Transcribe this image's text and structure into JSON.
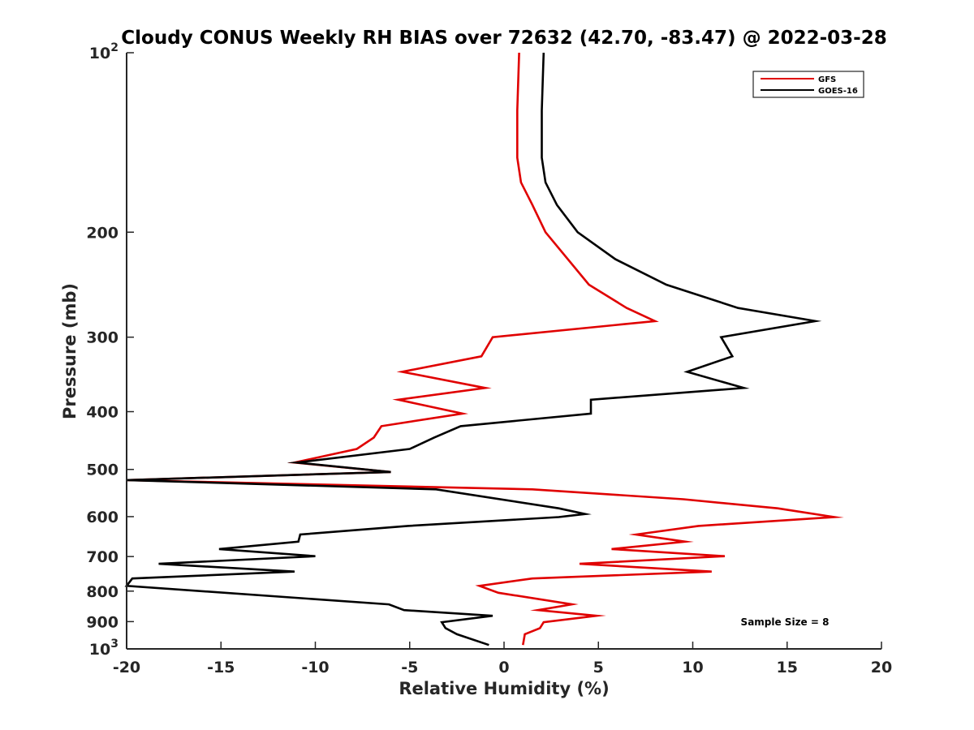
{
  "chart_data": {
    "type": "line",
    "title": "Cloudy CONUS Weekly RH BIAS over 72632 (42.70, -83.47) @ 2022-03-28",
    "xlabel": "Relative Humidity (%)",
    "ylabel": "Pressure (mb)",
    "xlim": [
      -20,
      20
    ],
    "ylim": [
      1000,
      100
    ],
    "yscale": "log",
    "y_reversed": true,
    "grid": false,
    "legend_position": "top-right",
    "annotation": "Sample Size = 8",
    "x_ticks": [
      {
        "value": -20,
        "label": "-20"
      },
      {
        "value": -15,
        "label": "-15"
      },
      {
        "value": -10,
        "label": "-10"
      },
      {
        "value": -5,
        "label": "-5"
      },
      {
        "value": 0,
        "label": "0"
      },
      {
        "value": 5,
        "label": "5"
      },
      {
        "value": 10,
        "label": "10"
      },
      {
        "value": 15,
        "label": "15"
      },
      {
        "value": 20,
        "label": "20"
      }
    ],
    "y_ticks": [
      {
        "value": 100,
        "label": "10",
        "sup": "2"
      },
      {
        "value": 200,
        "label": "200",
        "sup": ""
      },
      {
        "value": 300,
        "label": "300",
        "sup": ""
      },
      {
        "value": 400,
        "label": "400",
        "sup": ""
      },
      {
        "value": 500,
        "label": "500",
        "sup": ""
      },
      {
        "value": 600,
        "label": "600",
        "sup": ""
      },
      {
        "value": 700,
        "label": "700",
        "sup": ""
      },
      {
        "value": 800,
        "label": "800",
        "sup": ""
      },
      {
        "value": 900,
        "label": "900",
        "sup": ""
      },
      {
        "value": 1000,
        "label": "10",
        "sup": "3"
      }
    ],
    "series": [
      {
        "name": "GFS",
        "color": "#e00000",
        "points": [
          {
            "x": 0.8,
            "y": 100
          },
          {
            "x": 0.7,
            "y": 125
          },
          {
            "x": 0.7,
            "y": 150
          },
          {
            "x": 0.9,
            "y": 165
          },
          {
            "x": 1.5,
            "y": 180
          },
          {
            "x": 2.2,
            "y": 200
          },
          {
            "x": 4.5,
            "y": 245
          },
          {
            "x": 6.5,
            "y": 268
          },
          {
            "x": 8.0,
            "y": 282
          },
          {
            "x": -0.6,
            "y": 300
          },
          {
            "x": -1.2,
            "y": 323
          },
          {
            "x": -5.4,
            "y": 343
          },
          {
            "x": -1.0,
            "y": 365
          },
          {
            "x": -5.6,
            "y": 382
          },
          {
            "x": -2.2,
            "y": 403
          },
          {
            "x": -6.5,
            "y": 423
          },
          {
            "x": -6.9,
            "y": 442
          },
          {
            "x": -7.8,
            "y": 462
          },
          {
            "x": -11.1,
            "y": 487
          },
          {
            "x": -6.0,
            "y": 505
          },
          {
            "x": -20.0,
            "y": 521
          },
          {
            "x": 1.5,
            "y": 540
          },
          {
            "x": 9.5,
            "y": 561
          },
          {
            "x": 14.5,
            "y": 581
          },
          {
            "x": 17.5,
            "y": 601
          },
          {
            "x": 10.3,
            "y": 622
          },
          {
            "x": 7.0,
            "y": 643
          },
          {
            "x": 9.6,
            "y": 661
          },
          {
            "x": 5.7,
            "y": 680
          },
          {
            "x": 11.7,
            "y": 699
          },
          {
            "x": 4.0,
            "y": 720
          },
          {
            "x": 11.0,
            "y": 742
          },
          {
            "x": 1.5,
            "y": 762
          },
          {
            "x": -1.3,
            "y": 784
          },
          {
            "x": -0.3,
            "y": 805
          },
          {
            "x": 3.6,
            "y": 842
          },
          {
            "x": 1.8,
            "y": 861
          },
          {
            "x": 4.9,
            "y": 880
          },
          {
            "x": 2.1,
            "y": 902
          },
          {
            "x": 1.9,
            "y": 923
          },
          {
            "x": 1.1,
            "y": 945
          },
          {
            "x": 1.0,
            "y": 985
          }
        ]
      },
      {
        "name": "GOES-16",
        "color": "#000000",
        "points": [
          {
            "x": 2.1,
            "y": 100
          },
          {
            "x": 2.0,
            "y": 125
          },
          {
            "x": 2.0,
            "y": 150
          },
          {
            "x": 2.2,
            "y": 165
          },
          {
            "x": 2.8,
            "y": 180
          },
          {
            "x": 3.9,
            "y": 200
          },
          {
            "x": 5.9,
            "y": 222
          },
          {
            "x": 8.6,
            "y": 245
          },
          {
            "x": 12.4,
            "y": 268
          },
          {
            "x": 16.5,
            "y": 282
          },
          {
            "x": 11.5,
            "y": 300
          },
          {
            "x": 12.1,
            "y": 323
          },
          {
            "x": 9.7,
            "y": 343
          },
          {
            "x": 12.7,
            "y": 365
          },
          {
            "x": 4.6,
            "y": 382
          },
          {
            "x": 4.6,
            "y": 403
          },
          {
            "x": -2.3,
            "y": 423
          },
          {
            "x": -3.7,
            "y": 442
          },
          {
            "x": -5.0,
            "y": 462
          },
          {
            "x": -11.0,
            "y": 487
          },
          {
            "x": -6.0,
            "y": 505
          },
          {
            "x": -20.0,
            "y": 521
          },
          {
            "x": -3.6,
            "y": 540
          },
          {
            "x": 2.9,
            "y": 581
          },
          {
            "x": 4.3,
            "y": 594
          },
          {
            "x": 2.9,
            "y": 601
          },
          {
            "x": -5.1,
            "y": 622
          },
          {
            "x": -10.8,
            "y": 643
          },
          {
            "x": -10.9,
            "y": 661
          },
          {
            "x": -15.1,
            "y": 680
          },
          {
            "x": -10.0,
            "y": 699
          },
          {
            "x": -18.3,
            "y": 720
          },
          {
            "x": -11.1,
            "y": 742
          },
          {
            "x": -19.7,
            "y": 762
          },
          {
            "x": -20.0,
            "y": 784
          },
          {
            "x": -6.1,
            "y": 842
          },
          {
            "x": -5.3,
            "y": 861
          },
          {
            "x": -0.6,
            "y": 880
          },
          {
            "x": -3.3,
            "y": 902
          },
          {
            "x": -3.1,
            "y": 923
          },
          {
            "x": -2.5,
            "y": 945
          },
          {
            "x": -0.8,
            "y": 985
          }
        ]
      }
    ]
  }
}
